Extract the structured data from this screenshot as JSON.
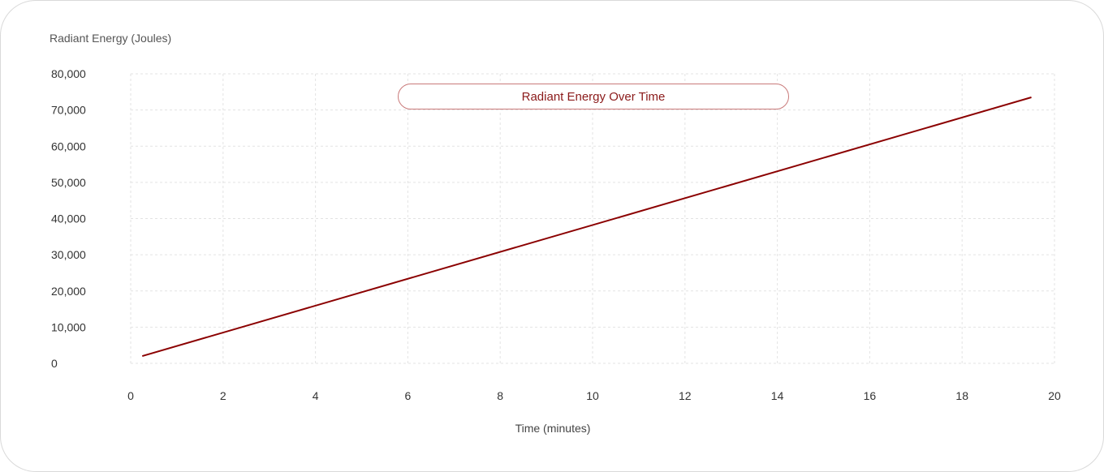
{
  "chart_data": {
    "type": "line",
    "title": "Radiant Energy Over Time",
    "xlabel": "Time (minutes)",
    "ylabel": "Radiant Energy (Joules)",
    "xlim": [
      0,
      20
    ],
    "ylim": [
      0,
      80000
    ],
    "x_ticks": [
      "0",
      "2",
      "4",
      "6",
      "8",
      "10",
      "12",
      "14",
      "16",
      "18",
      "20"
    ],
    "y_ticks": [
      "0",
      "10,000",
      "20,000",
      "30,000",
      "40,000",
      "50,000",
      "60,000",
      "70,000",
      "80,000"
    ],
    "grid": true,
    "series": [
      {
        "x": [
          0.25,
          19.5
        ],
        "y": [
          2000,
          73500
        ],
        "color": "#8b0000"
      }
    ]
  }
}
